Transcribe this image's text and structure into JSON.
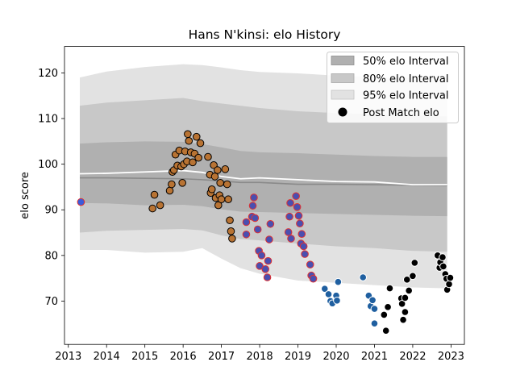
{
  "chart_data": {
    "type": "scatter",
    "title": "Hans N'kinsi: elo History",
    "xlabel": "",
    "ylabel": "elo score",
    "xlim": [
      2012.9,
      2023.35
    ],
    "ylim": [
      60.5,
      125.8
    ],
    "x_ticks": [
      2013,
      2014,
      2015,
      2016,
      2017,
      2018,
      2019,
      2020,
      2021,
      2022,
      2023
    ],
    "y_ticks": [
      70,
      80,
      90,
      100,
      110,
      120
    ],
    "grid": false,
    "legend_position": "top-right",
    "legend": [
      {
        "label": "50% elo Interval",
        "kind": "patch",
        "color": "#b0b0b0"
      },
      {
        "label": "80% elo Interval",
        "kind": "patch",
        "color": "#c8c8c8"
      },
      {
        "label": "95% elo Interval",
        "kind": "patch",
        "color": "#e2e2e2"
      },
      {
        "label": "Post Match elo",
        "kind": "marker",
        "color": "#000000"
      }
    ],
    "mean_line": {
      "color": "#ffffff",
      "x": [
        2013.3,
        2014.0,
        2015.0,
        2016.0,
        2016.5,
        2017.0,
        2017.5,
        2018.0,
        2019.0,
        2020.0,
        2021.0,
        2022.0,
        2022.9
      ],
      "y": [
        97.9,
        98.0,
        98.3,
        98.6,
        98.2,
        97.3,
        96.8,
        97.0,
        96.6,
        96.2,
        96.1,
        95.5,
        95.5
      ]
    },
    "interval_95": {
      "x": [
        2013.3,
        2014.0,
        2015.0,
        2016.0,
        2016.5,
        2017.0,
        2017.5,
        2018.0,
        2019.0,
        2020.0,
        2021.0,
        2022.0,
        2022.9
      ],
      "upper": [
        119.0,
        120.3,
        121.3,
        121.9,
        121.7,
        121.2,
        120.6,
        120.2,
        119.9,
        119.4,
        119.1,
        118.9,
        118.8
      ],
      "lower": [
        81.2,
        81.2,
        80.6,
        80.8,
        81.6,
        79.3,
        77.2,
        76.0,
        74.5,
        74.0,
        73.5,
        73.0,
        72.8
      ]
    },
    "interval_80": {
      "x": [
        2013.3,
        2014.0,
        2015.0,
        2016.0,
        2016.5,
        2017.0,
        2017.5,
        2018.0,
        2019.0,
        2020.0,
        2021.0,
        2022.0,
        2022.9
      ],
      "upper": [
        112.8,
        113.5,
        114.0,
        114.5,
        113.8,
        113.3,
        112.8,
        112.3,
        111.6,
        111.2,
        110.9,
        110.6,
        110.5
      ],
      "lower": [
        85.0,
        85.4,
        85.6,
        85.8,
        85.5,
        84.4,
        83.6,
        83.3,
        82.6,
        82.0,
        81.6,
        81.0,
        80.8
      ]
    },
    "interval_50": {
      "x": [
        2013.3,
        2014.0,
        2015.0,
        2016.0,
        2016.5,
        2017.0,
        2017.5,
        2018.0,
        2019.0,
        2020.0,
        2021.0,
        2022.0,
        2022.9
      ],
      "upper": [
        104.5,
        104.8,
        105.0,
        104.9,
        104.4,
        103.7,
        102.9,
        102.6,
        102.4,
        102.1,
        101.8,
        101.6,
        101.6
      ],
      "lower": [
        91.5,
        91.4,
        91.0,
        91.1,
        90.8,
        90.1,
        89.6,
        89.5,
        89.3,
        89.1,
        88.9,
        88.7,
        88.6
      ]
    },
    "band_line": {
      "color": "#8a8a8a",
      "x": [
        2013.3,
        2014.0,
        2015.0,
        2016.0,
        2016.5,
        2017.0,
        2017.5,
        2018.0,
        2019.0,
        2020.0,
        2021.0,
        2022.0,
        2022.9
      ],
      "y": [
        97.0,
        97.0,
        96.9,
        96.8,
        96.6,
        96.3,
        96.0,
        96.0,
        95.6,
        95.6,
        95.5,
        95.4,
        95.3
      ]
    },
    "series": [
      {
        "fill": "#3b5bdb",
        "edge": "#e03131",
        "points": [
          [
            2013.33,
            91.7
          ]
        ]
      },
      {
        "fill": "#b87333",
        "edge": "#000000",
        "points": [
          [
            2015.2,
            90.3
          ],
          [
            2015.25,
            93.3
          ],
          [
            2015.4,
            91.0
          ],
          [
            2015.65,
            94.2
          ],
          [
            2015.7,
            95.6
          ],
          [
            2015.72,
            98.3
          ],
          [
            2015.76,
            98.7
          ],
          [
            2015.8,
            102.1
          ],
          [
            2015.85,
            99.7
          ],
          [
            2015.9,
            103.0
          ],
          [
            2015.95,
            99.5
          ],
          [
            2015.98,
            95.9
          ],
          [
            2016.02,
            100.0
          ],
          [
            2016.05,
            102.8
          ],
          [
            2016.1,
            100.6
          ],
          [
            2016.12,
            106.6
          ],
          [
            2016.15,
            105.1
          ],
          [
            2016.2,
            102.6
          ],
          [
            2016.25,
            100.4
          ],
          [
            2016.3,
            102.3
          ],
          [
            2016.35,
            106.0
          ],
          [
            2016.4,
            101.4
          ],
          [
            2016.45,
            104.6
          ],
          [
            2016.65,
            101.6
          ],
          [
            2016.7,
            97.7
          ],
          [
            2016.72,
            93.7
          ],
          [
            2016.75,
            94.5
          ],
          [
            2016.8,
            99.8
          ],
          [
            2016.83,
            97.3
          ],
          [
            2016.85,
            92.6
          ],
          [
            2016.9,
            98.7
          ],
          [
            2016.92,
            91.0
          ],
          [
            2016.95,
            93.2
          ],
          [
            2016.97,
            95.9
          ],
          [
            2017.0,
            92.3
          ],
          [
            2017.1,
            98.9
          ],
          [
            2017.15,
            95.6
          ],
          [
            2017.18,
            92.3
          ],
          [
            2017.22,
            87.7
          ],
          [
            2017.25,
            85.3
          ],
          [
            2017.28,
            83.7
          ]
        ]
      },
      {
        "fill": "#4a4fb0",
        "edge": "#e03131",
        "points": [
          [
            2017.65,
            84.6
          ],
          [
            2017.65,
            87.3
          ],
          [
            2017.8,
            88.5
          ],
          [
            2017.82,
            90.9
          ],
          [
            2017.85,
            92.7
          ],
          [
            2017.88,
            88.2
          ],
          [
            2017.95,
            85.7
          ],
          [
            2017.98,
            81.0
          ],
          [
            2018.0,
            77.7
          ],
          [
            2018.05,
            80.0
          ],
          [
            2018.15,
            77.0
          ],
          [
            2018.2,
            75.2
          ],
          [
            2018.22,
            78.8
          ],
          [
            2018.25,
            83.5
          ],
          [
            2018.28,
            86.9
          ],
          [
            2018.75,
            85.1
          ],
          [
            2018.78,
            88.5
          ],
          [
            2018.8,
            91.5
          ],
          [
            2018.82,
            83.7
          ],
          [
            2018.95,
            93.0
          ],
          [
            2018.98,
            90.6
          ],
          [
            2019.02,
            88.7
          ],
          [
            2019.05,
            87.0
          ],
          [
            2019.08,
            82.6
          ],
          [
            2019.1,
            84.7
          ],
          [
            2019.15,
            82.0
          ],
          [
            2019.18,
            80.3
          ],
          [
            2019.32,
            78.0
          ],
          [
            2019.35,
            75.6
          ],
          [
            2019.4,
            74.9
          ]
        ]
      },
      {
        "fill": "#1f5fa0",
        "edge": "#ffffff",
        "points": [
          [
            2019.7,
            72.7
          ],
          [
            2019.8,
            71.5
          ],
          [
            2019.85,
            70.0
          ],
          [
            2019.9,
            69.5
          ],
          [
            2020.0,
            71.2
          ],
          [
            2020.02,
            70.1
          ],
          [
            2020.05,
            74.2
          ],
          [
            2020.7,
            75.2
          ],
          [
            2020.85,
            71.2
          ],
          [
            2020.9,
            68.9
          ],
          [
            2020.95,
            70.2
          ],
          [
            2021.0,
            68.3
          ],
          [
            2021.0,
            65.1
          ]
        ]
      },
      {
        "fill": "#000000",
        "edge": "#ffffff",
        "points": [
          [
            2021.25,
            67.0
          ],
          [
            2021.3,
            63.5
          ],
          [
            2021.35,
            68.7
          ],
          [
            2021.4,
            72.8
          ],
          [
            2021.7,
            70.6
          ],
          [
            2021.72,
            69.4
          ],
          [
            2021.75,
            65.9
          ],
          [
            2021.8,
            67.6
          ],
          [
            2021.8,
            70.7
          ],
          [
            2021.85,
            74.7
          ],
          [
            2021.9,
            72.3
          ],
          [
            2022.0,
            75.5
          ],
          [
            2022.05,
            78.4
          ],
          [
            2022.65,
            80.0
          ],
          [
            2022.7,
            77.3
          ],
          [
            2022.72,
            78.5
          ],
          [
            2022.78,
            79.6
          ],
          [
            2022.8,
            77.6
          ],
          [
            2022.85,
            75.9
          ],
          [
            2022.88,
            74.9
          ],
          [
            2022.9,
            72.5
          ],
          [
            2022.95,
            73.7
          ],
          [
            2022.98,
            75.1
          ]
        ]
      }
    ]
  }
}
